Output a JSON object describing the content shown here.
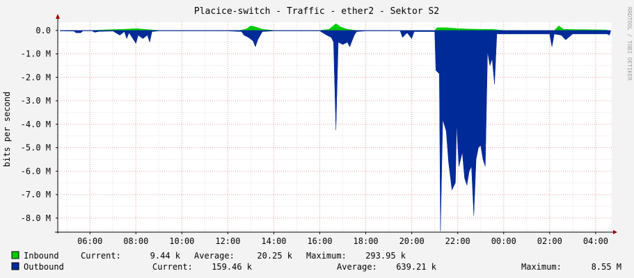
{
  "chart_data": {
    "type": "area",
    "title": "Placice-switch - Traffic - ether2 - Sektor S2",
    "ylabel": "bits per second",
    "watermark": "RRDTOOL / TOBI OETIKER",
    "y_ticks": [
      {
        "value": 0.0,
        "label": "0.0"
      },
      {
        "value": -1.0,
        "label": "-1.0 M"
      },
      {
        "value": -2.0,
        "label": "-2.0 M"
      },
      {
        "value": -3.0,
        "label": "-3.0 M"
      },
      {
        "value": -4.0,
        "label": "-4.0 M"
      },
      {
        "value": -5.0,
        "label": "-5.0 M"
      },
      {
        "value": -6.0,
        "label": "-6.0 M"
      },
      {
        "value": -7.0,
        "label": "-7.0 M"
      },
      {
        "value": -8.0,
        "label": "-8.0 M"
      }
    ],
    "x_ticks": [
      {
        "value": 6,
        "label": "06:00"
      },
      {
        "value": 8,
        "label": "08:00"
      },
      {
        "value": 10,
        "label": "10:00"
      },
      {
        "value": 12,
        "label": "12:00"
      },
      {
        "value": 14,
        "label": "14:00"
      },
      {
        "value": 16,
        "label": "16:00"
      },
      {
        "value": 18,
        "label": "18:00"
      },
      {
        "value": 20,
        "label": "20:00"
      },
      {
        "value": 22,
        "label": "22:00"
      },
      {
        "value": 24,
        "label": "00:00"
      },
      {
        "value": 26,
        "label": "02:00"
      },
      {
        "value": 28,
        "label": "04:00"
      }
    ],
    "xlim": [
      4.6,
      28.7
    ],
    "ylim": [
      -8.6,
      0.35
    ],
    "grid": true,
    "series": [
      {
        "name": "Inbound",
        "color": "#00cc00",
        "current": "9.44 k",
        "average": "20.25 k",
        "maximum": "293.95 k",
        "points": [
          [
            5.0,
            0.0
          ],
          [
            6.0,
            0.0
          ],
          [
            7.0,
            0.04
          ],
          [
            7.5,
            0.05
          ],
          [
            8.0,
            0.08
          ],
          [
            8.5,
            0.04
          ],
          [
            9.0,
            0.0
          ],
          [
            12.5,
            0.0
          ],
          [
            12.8,
            0.06
          ],
          [
            13.0,
            0.2
          ],
          [
            13.2,
            0.15
          ],
          [
            13.5,
            0.05
          ],
          [
            14.0,
            0.0
          ],
          [
            16.0,
            0.0
          ],
          [
            16.4,
            0.05
          ],
          [
            16.7,
            0.29
          ],
          [
            16.9,
            0.15
          ],
          [
            17.2,
            0.05
          ],
          [
            17.6,
            0.0
          ],
          [
            21.0,
            0.0
          ],
          [
            21.1,
            0.12
          ],
          [
            21.5,
            0.12
          ],
          [
            22.0,
            0.08
          ],
          [
            22.5,
            0.06
          ],
          [
            23.0,
            0.05
          ],
          [
            23.5,
            0.05
          ],
          [
            24.0,
            0.0
          ],
          [
            26.2,
            0.0
          ],
          [
            26.4,
            0.2
          ],
          [
            26.6,
            0.05
          ],
          [
            27.0,
            0.04
          ],
          [
            27.5,
            0.04
          ],
          [
            28.0,
            0.03
          ],
          [
            28.5,
            0.02
          ]
        ]
      },
      {
        "name": "Outbound",
        "color": "#002a97",
        "current": "159.46 k",
        "average": "639.21 k",
        "maximum": "8.55 M",
        "points": [
          [
            4.7,
            -0.02
          ],
          [
            5.3,
            -0.03
          ],
          [
            5.4,
            -0.1
          ],
          [
            5.6,
            -0.1
          ],
          [
            5.7,
            -0.02
          ],
          [
            6.1,
            -0.02
          ],
          [
            6.2,
            -0.08
          ],
          [
            6.4,
            -0.04
          ],
          [
            7.0,
            -0.03
          ],
          [
            7.3,
            -0.2
          ],
          [
            7.5,
            -0.05
          ],
          [
            7.6,
            -0.35
          ],
          [
            7.7,
            -0.1
          ],
          [
            7.9,
            -0.4
          ],
          [
            8.0,
            -0.55
          ],
          [
            8.1,
            -0.2
          ],
          [
            8.3,
            -0.35
          ],
          [
            8.5,
            -0.2
          ],
          [
            8.6,
            -0.5
          ],
          [
            8.7,
            -0.05
          ],
          [
            9.0,
            -0.02
          ],
          [
            12.0,
            -0.02
          ],
          [
            12.6,
            -0.05
          ],
          [
            12.7,
            -0.2
          ],
          [
            12.9,
            -0.3
          ],
          [
            13.1,
            -0.45
          ],
          [
            13.2,
            -0.7
          ],
          [
            13.3,
            -0.4
          ],
          [
            13.5,
            -0.05
          ],
          [
            14.0,
            -0.02
          ],
          [
            16.0,
            -0.02
          ],
          [
            16.3,
            -0.2
          ],
          [
            16.5,
            -0.3
          ],
          [
            16.6,
            -0.5
          ],
          [
            16.7,
            -4.25
          ],
          [
            16.8,
            -0.5
          ],
          [
            17.0,
            -0.6
          ],
          [
            17.2,
            -0.5
          ],
          [
            17.3,
            -0.7
          ],
          [
            17.5,
            -0.2
          ],
          [
            17.6,
            -0.05
          ],
          [
            18.0,
            -0.02
          ],
          [
            19.5,
            -0.02
          ],
          [
            19.6,
            -0.3
          ],
          [
            19.8,
            -0.1
          ],
          [
            20.0,
            -0.35
          ],
          [
            20.1,
            -0.05
          ],
          [
            21.0,
            -0.05
          ],
          [
            21.05,
            -1.7
          ],
          [
            21.2,
            -1.85
          ],
          [
            21.25,
            -8.55
          ],
          [
            21.35,
            -3.8
          ],
          [
            21.5,
            -4.3
          ],
          [
            21.6,
            -5.6
          ],
          [
            21.75,
            -6.8
          ],
          [
            21.9,
            -6.5
          ],
          [
            21.95,
            -4.0
          ],
          [
            22.05,
            -5.8
          ],
          [
            22.2,
            -5.2
          ],
          [
            22.3,
            -6.3
          ],
          [
            22.4,
            -6.6
          ],
          [
            22.5,
            -6.0
          ],
          [
            22.6,
            -5.8
          ],
          [
            22.7,
            -7.9
          ],
          [
            22.8,
            -5.5
          ],
          [
            22.9,
            -5.0
          ],
          [
            23.0,
            -4.9
          ],
          [
            23.1,
            -5.5
          ],
          [
            23.2,
            -5.8
          ],
          [
            23.3,
            -0.9
          ],
          [
            23.4,
            -1.5
          ],
          [
            23.5,
            -1.2
          ],
          [
            23.6,
            -2.3
          ],
          [
            23.7,
            -0.15
          ],
          [
            24.0,
            -0.15
          ],
          [
            26.0,
            -0.15
          ],
          [
            26.1,
            -0.7
          ],
          [
            26.2,
            -0.15
          ],
          [
            26.5,
            -0.2
          ],
          [
            26.7,
            -0.4
          ],
          [
            27.0,
            -0.15
          ],
          [
            28.5,
            -0.15
          ],
          [
            28.6,
            -0.2
          ],
          [
            28.65,
            -0.05
          ]
        ]
      }
    ]
  }
}
